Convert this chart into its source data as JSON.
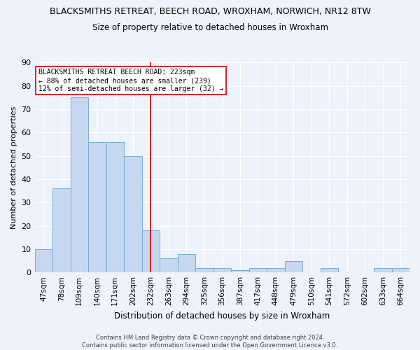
{
  "title_line1": "BLACKSMITHS RETREAT, BEECH ROAD, WROXHAM, NORWICH, NR12 8TW",
  "title_line2": "Size of property relative to detached houses in Wroxham",
  "xlabel": "Distribution of detached houses by size in Wroxham",
  "ylabel": "Number of detached properties",
  "categories": [
    "47sqm",
    "78sqm",
    "109sqm",
    "140sqm",
    "171sqm",
    "202sqm",
    "232sqm",
    "263sqm",
    "294sqm",
    "325sqm",
    "356sqm",
    "387sqm",
    "417sqm",
    "448sqm",
    "479sqm",
    "510sqm",
    "541sqm",
    "572sqm",
    "602sqm",
    "633sqm",
    "664sqm"
  ],
  "values": [
    10,
    36,
    75,
    56,
    56,
    50,
    18,
    6,
    8,
    2,
    2,
    1,
    2,
    2,
    5,
    0,
    2,
    0,
    0,
    2,
    2
  ],
  "bar_color": "#c5d8f0",
  "bar_edge_color": "#7aadd4",
  "highlight_index": 6,
  "highlight_color": "#cc0000",
  "ylim": [
    0,
    90
  ],
  "yticks": [
    0,
    10,
    20,
    30,
    40,
    50,
    60,
    70,
    80,
    90
  ],
  "annotation_line1": "BLACKSMITHS RETREAT BEECH ROAD: 223sqm",
  "annotation_line2": "← 88% of detached houses are smaller (239)",
  "annotation_line3": "12% of semi-detached houses are larger (32) →",
  "footer_text": "Contains HM Land Registry data © Crown copyright and database right 2024.\nContains public sector information licensed under the Open Government Licence v3.0.",
  "bg_color": "#eef2fb",
  "grid_color": "#ffffff",
  "annotation_box_color": "#ffffff",
  "annotation_box_edge": "#cc0000",
  "title1_fontsize": 9,
  "title2_fontsize": 8.5,
  "ylabel_fontsize": 8,
  "xlabel_fontsize": 8.5,
  "tick_fontsize": 7.5,
  "ytick_fontsize": 8,
  "annotation_fontsize": 7,
  "footer_fontsize": 6
}
